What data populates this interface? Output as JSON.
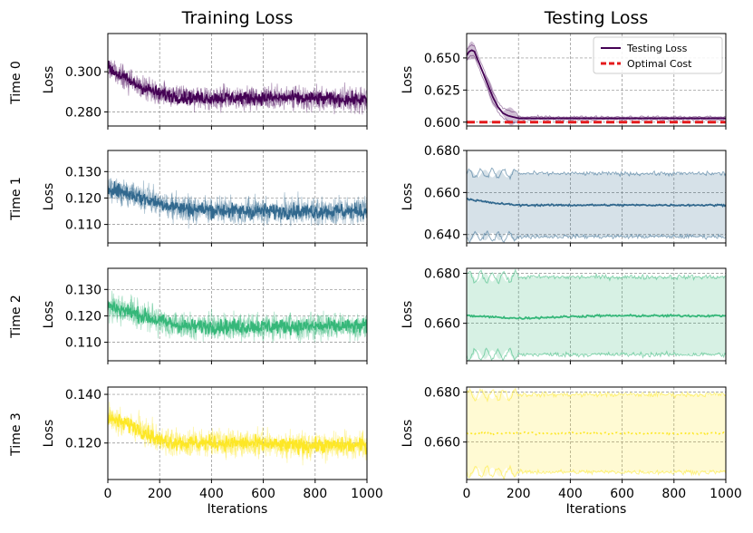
{
  "columns": [
    "Training Loss",
    "Testing Loss"
  ],
  "rows": [
    "Time 0",
    "Time 1",
    "Time 2",
    "Time 3"
  ],
  "ylabel": "Loss",
  "xlabel": "Iterations",
  "colors": {
    "time0": "#440154",
    "time1": "#31688e",
    "time2": "#35b779",
    "time3": "#fde725",
    "optimal": "#e41a1c"
  },
  "legend": {
    "testing": "Testing Loss",
    "optimal": "Optimal Cost",
    "position": "top-right"
  },
  "chart_data": [
    {
      "type": "line",
      "title": "Training Loss",
      "row": "Time 0",
      "xlabel": "",
      "ylabel": "Loss",
      "xlim": [
        0,
        1000
      ],
      "ylim": [
        0.273,
        0.319
      ],
      "yticks": [
        "0.280",
        "0.300"
      ],
      "grid": true,
      "series": [
        {
          "values_x": [
            0,
            100,
            200,
            300,
            500,
            700,
            1000
          ],
          "values": [
            0.302,
            0.294,
            0.289,
            0.287,
            0.287,
            0.287,
            0.286
          ]
        }
      ]
    },
    {
      "type": "line",
      "title": "Testing Loss",
      "row": "Time 0",
      "xlabel": "",
      "ylabel": "Loss",
      "xlim": [
        0,
        1000
      ],
      "ylim": [
        0.597,
        0.669
      ],
      "yticks": [
        "0.600",
        "0.625",
        "0.650"
      ],
      "grid": true,
      "series": [
        {
          "name": "Testing Loss",
          "values_x": [
            0,
            10,
            20,
            30,
            40,
            60,
            80,
            100,
            120,
            140,
            160,
            180,
            200,
            250,
            300,
            1000
          ],
          "values": [
            0.652,
            0.655,
            0.656,
            0.655,
            0.65,
            0.64,
            0.63,
            0.62,
            0.612,
            0.607,
            0.605,
            0.604,
            0.603,
            0.603,
            0.603,
            0.603
          ]
        },
        {
          "name": "Optimal Cost",
          "values_x": [
            0,
            1000
          ],
          "values": [
            0.6,
            0.6
          ]
        }
      ]
    },
    {
      "type": "line",
      "title": "Training Loss",
      "row": "Time 1",
      "xlabel": "",
      "ylabel": "Loss",
      "xlim": [
        0,
        1000
      ],
      "ylim": [
        0.103,
        0.138
      ],
      "yticks": [
        "0.110",
        "0.120",
        "0.130"
      ],
      "grid": true,
      "series": [
        {
          "values_x": [
            0,
            100,
            200,
            300,
            500,
            700,
            1000
          ],
          "values": [
            0.124,
            0.121,
            0.118,
            0.116,
            0.115,
            0.115,
            0.115
          ]
        }
      ]
    },
    {
      "type": "line",
      "title": "Testing Loss",
      "row": "Time 1",
      "xlabel": "",
      "ylabel": "Loss",
      "xlim": [
        0,
        1000
      ],
      "ylim": [
        0.636,
        0.68
      ],
      "yticks": [
        "0.640",
        "0.660",
        "0.680"
      ],
      "grid": true,
      "series": [
        {
          "values_x": [
            0,
            100,
            200,
            500,
            1000
          ],
          "values": [
            0.657,
            0.655,
            0.654,
            0.654,
            0.654
          ]
        }
      ]
    },
    {
      "type": "line",
      "title": "Training Loss",
      "row": "Time 2",
      "xlabel": "",
      "ylabel": "Loss",
      "xlim": [
        0,
        1000
      ],
      "ylim": [
        0.103,
        0.138
      ],
      "yticks": [
        "0.110",
        "0.120",
        "0.130"
      ],
      "grid": true,
      "series": [
        {
          "values_x": [
            0,
            100,
            200,
            300,
            500,
            700,
            1000
          ],
          "values": [
            0.124,
            0.121,
            0.118,
            0.116,
            0.116,
            0.116,
            0.116
          ]
        }
      ]
    },
    {
      "type": "line",
      "title": "Testing Loss",
      "row": "Time 2",
      "xlabel": "",
      "ylabel": "Loss",
      "xlim": [
        0,
        1000
      ],
      "ylim": [
        0.645,
        0.682
      ],
      "yticks": [
        "0.660",
        "0.680"
      ],
      "grid": true,
      "series": [
        {
          "values_x": [
            0,
            200,
            500,
            1000
          ],
          "values": [
            0.663,
            0.662,
            0.663,
            0.663
          ]
        }
      ]
    },
    {
      "type": "line",
      "title": "Training Loss",
      "row": "Time 3",
      "xlabel": "Iterations",
      "ylabel": "Loss",
      "xlim": [
        0,
        1000
      ],
      "ylim": [
        0.105,
        0.143
      ],
      "yticks": [
        "0.120",
        "0.140"
      ],
      "grid": true,
      "xticks": [
        "0",
        "200",
        "400",
        "600",
        "800",
        "1000"
      ],
      "series": [
        {
          "values_x": [
            0,
            100,
            200,
            300,
            500,
            700,
            1000
          ],
          "values": [
            0.13,
            0.127,
            0.121,
            0.12,
            0.12,
            0.119,
            0.119
          ]
        }
      ]
    },
    {
      "type": "line",
      "title": "Testing Loss",
      "row": "Time 3",
      "xlabel": "Iterations",
      "ylabel": "Loss",
      "xlim": [
        0,
        1000
      ],
      "ylim": [
        0.645,
        0.682
      ],
      "yticks": [
        "0.660",
        "0.680"
      ],
      "grid": true,
      "xticks": [
        "0",
        "200",
        "400",
        "600",
        "800",
        "1000"
      ],
      "series": [
        {
          "values_x": [
            0,
            1000
          ],
          "values": [
            0.6635,
            0.6635
          ]
        }
      ]
    }
  ]
}
